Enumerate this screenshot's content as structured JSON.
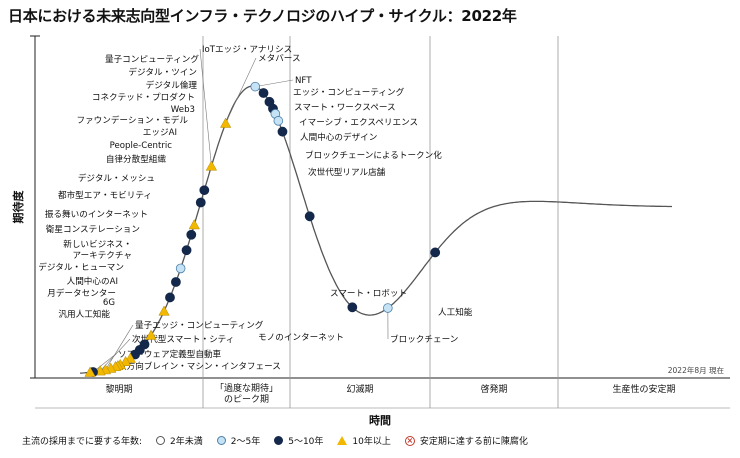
{
  "title": "日本における未来志向型インフラ・テクノロジのハイプ・サイクル：2022年",
  "chart_data": {
    "type": "hype_cycle",
    "title": "日本における未来志向型インフラ・テクノロジのハイプ・サイクル：2022年",
    "ylabel": "期待度",
    "xlabel": "時間",
    "note": "2022年8月 現在",
    "phases": [
      {
        "id": "p1",
        "label": "黎明期"
      },
      {
        "id": "p2",
        "label": "「過度な期待」",
        "label2": "のピーク期"
      },
      {
        "id": "p3",
        "label": "幻滅期"
      },
      {
        "id": "p4",
        "label": "啓発期"
      },
      {
        "id": "p5",
        "label": "生産性の安定期"
      }
    ],
    "technologies": [
      {
        "name": "量子コンピューティング",
        "t": 0.193,
        "cat": "10+"
      },
      {
        "name": "デジタル・ツイン",
        "t": 0.204,
        "cat": "5-10"
      },
      {
        "name": "デジタル倫理",
        "t": 0.21,
        "cat": "5-10"
      },
      {
        "name": "IoTエッジ・アナリシス",
        "t": 0.222,
        "cat": "10+"
      },
      {
        "name": "メタバース",
        "t": 0.246,
        "cat": "10+"
      },
      {
        "name": "コネクテッド・プロダクト",
        "t": 0.188,
        "cat": "5-10"
      },
      {
        "name": "Web3",
        "t": 0.18,
        "cat": "5-10"
      },
      {
        "name": "ファウンデーション・モデル",
        "t": 0.17,
        "cat": "2-5"
      },
      {
        "name": "エッジAI",
        "t": 0.162,
        "cat": "5-10"
      },
      {
        "name": "People-Centric",
        "t": 0.152,
        "cat": "5-10"
      },
      {
        "name": "自律分散型組織",
        "t": 0.142,
        "cat": "10+"
      },
      {
        "name": "デジタル・メッシュ",
        "t": 0.12,
        "cat": "10+"
      },
      {
        "name": "都市型エア・モビリティ",
        "t": 0.109,
        "cat": "5-10"
      },
      {
        "name": "振る舞いのインターネット",
        "t": 0.101,
        "cat": "5-10"
      },
      {
        "name": "衛星コンステレーション",
        "t": 0.093,
        "cat": "5-10"
      },
      {
        "name": "新しいビジネス・アーキテクチャ",
        "t": 0.085,
        "cat": "10+"
      },
      {
        "name": "デジタル・ヒューマン",
        "t": 0.077,
        "cat": "10+"
      },
      {
        "name": "人間中心のAI",
        "t": 0.068,
        "cat": "10+"
      },
      {
        "name": "月データセンター",
        "t": 0.064,
        "cat": "10+"
      },
      {
        "name": "6G",
        "t": 0.06,
        "cat": "10+"
      },
      {
        "name": "汎用人工知能",
        "t": 0.052,
        "cat": "10+"
      },
      {
        "name": "量子エッジ・コンピューティング",
        "t": 0.043,
        "cat": "10+"
      },
      {
        "name": "次世代型スマート・シティ",
        "t": 0.034,
        "cat": "10+"
      },
      {
        "name": "ソフトウェア定義型自動車",
        "t": 0.022,
        "cat": "5-10"
      },
      {
        "name": "双方向ブレイン・マシン・インタフェース",
        "t": 0.017,
        "cat": "10+"
      },
      {
        "name": "NFT",
        "t": 0.296,
        "cat": "2-5"
      },
      {
        "name": "エッジ・コンピューティング",
        "t": 0.31,
        "cat": "5-10"
      },
      {
        "name": "スマート・ワークスペース",
        "t": 0.32,
        "cat": "5-10"
      },
      {
        "name": "イマーシブ・エクスペリエンス",
        "t": 0.326,
        "cat": "5-10"
      },
      {
        "name": "人間中心のデザイン",
        "t": 0.33,
        "cat": "2-5"
      },
      {
        "name": "ブロックチェーンによるトークン化",
        "t": 0.335,
        "cat": "2-5"
      },
      {
        "name": "次世代型リアル店舗",
        "t": 0.342,
        "cat": "5-10"
      },
      {
        "name": "スマート・ロボット",
        "t": 0.388,
        "cat": "5-10"
      },
      {
        "name": "モノのインターネット",
        "t": 0.46,
        "cat": "5-10"
      },
      {
        "name": "ブロックチェーン",
        "t": 0.52,
        "cat": "2-5"
      },
      {
        "name": "人工知能",
        "t": 0.6,
        "cat": "5-10"
      }
    ]
  },
  "legend": {
    "title": "主流の採用までに要する年数:",
    "items": [
      {
        "key": "<2",
        "label": "2年未満"
      },
      {
        "key": "2-5",
        "label": "2〜5年"
      },
      {
        "key": "5-10",
        "label": "5〜10年"
      },
      {
        "key": "10+",
        "label": "10年以上"
      },
      {
        "key": "obsolete",
        "label": "安定期に達する前に陳腐化"
      }
    ]
  },
  "colors": {
    "navy": "#14284b",
    "light": "#c5e3f5",
    "light_border": "#4a7ea8",
    "yellow": "#f2b800",
    "red": "#c0392b",
    "curve": "#555555",
    "grid": "#999999"
  }
}
